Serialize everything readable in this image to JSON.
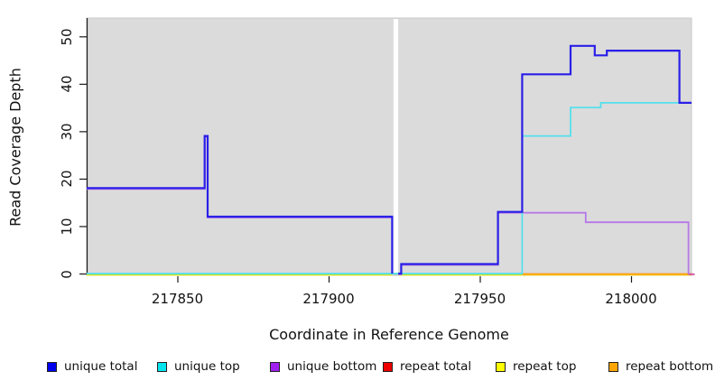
{
  "y_axis": {
    "label": "Read Coverage Depth",
    "ticks": [
      0,
      10,
      20,
      30,
      40,
      50
    ]
  },
  "x_axis": {
    "label": "Coordinate in Reference Genome",
    "ticks": [
      217850,
      217900,
      217950,
      218000
    ]
  },
  "legend": {
    "items": [
      {
        "label": "unique total",
        "color": "#0000ee"
      },
      {
        "label": "unique top",
        "color": "#00e5ee"
      },
      {
        "label": "unique bottom",
        "color": "#a020f0"
      },
      {
        "label": "repeat total",
        "color": "#ee0000"
      },
      {
        "label": "repeat top",
        "color": "#ffff00"
      },
      {
        "label": "repeat bottom",
        "color": "#ffa500"
      }
    ]
  },
  "chart_data": {
    "type": "line",
    "subtype": "step",
    "title": "",
    "xlabel": "Coordinate in Reference Genome",
    "ylabel": "Read Coverage Depth",
    "xlim": [
      217820,
      218021
    ],
    "ylim": [
      0,
      50
    ],
    "grid": false,
    "legend_position": "bottom",
    "plot_bg": "#dbdbdb",
    "gap_x": [
      217921,
      217923
    ],
    "series": [
      {
        "name": "unique total",
        "color": "#2a1fe8",
        "width": 2.2,
        "draw": 7,
        "dy": 0,
        "segments": [
          [
            [
              217820,
              18
            ],
            [
              217859,
              29
            ],
            [
              217860,
              12
            ],
            [
              217921,
              0
            ]
          ],
          [
            [
              217923,
              0
            ],
            [
              217924,
              2
            ],
            [
              217956,
              13
            ],
            [
              217964,
              42
            ],
            [
              217980,
              48
            ],
            [
              217988,
              46
            ],
            [
              217992,
              47
            ],
            [
              218016,
              36
            ],
            [
              218020,
              36
            ]
          ]
        ]
      },
      {
        "name": "unique top",
        "color": "#55e0ec",
        "width": 1.8,
        "draw": 6,
        "dy": 0,
        "segments": [
          [
            [
              217820,
              0
            ],
            [
              217964,
              0
            ],
            [
              217964,
              29
            ],
            [
              217980,
              35
            ],
            [
              217990,
              36
            ],
            [
              218020,
              36
            ]
          ]
        ]
      },
      {
        "name": "unique bottom",
        "color": "#b678e6",
        "width": 1.8,
        "draw": 5,
        "dy": 1,
        "segments": [
          [
            [
              217820,
              18
            ],
            [
              217859,
              29
            ],
            [
              217860,
              12
            ],
            [
              217921,
              0
            ]
          ],
          [
            [
              217923,
              0
            ],
            [
              217924,
              2
            ],
            [
              217956,
              13
            ],
            [
              217985,
              11
            ],
            [
              218019,
              0
            ]
          ]
        ]
      },
      {
        "name": "repeat total",
        "color": "#e60000",
        "width": 1.4,
        "draw": 1,
        "dy": 0.6,
        "segments": [
          [
            [
              217820,
              0
            ],
            [
              217921,
              0
            ]
          ],
          [
            [
              217923,
              0
            ],
            [
              218020,
              0
            ]
          ]
        ]
      },
      {
        "name": "repeat top",
        "color": "#f0f000",
        "width": 1.4,
        "draw": 2,
        "dy": 1.6,
        "segments": [
          [
            [
              217820,
              0
            ],
            [
              217921,
              0
            ]
          ],
          [
            [
              217923,
              0
            ],
            [
              218020,
              0
            ]
          ]
        ]
      },
      {
        "name": "repeat bottom",
        "color": "#ffa500",
        "width": 2,
        "draw": 3,
        "dy": 0.8,
        "clip_x": [
          217964,
          218021
        ],
        "segments": [
          [
            [
              217820,
              0
            ],
            [
              217921,
              0
            ]
          ],
          [
            [
              217923,
              0
            ],
            [
              218020,
              0
            ]
          ]
        ]
      }
    ],
    "zero_overlap_blends": [
      {
        "name": "cyan-over-yellow-zero",
        "color": "#7dc87d",
        "width": 1.6,
        "dy": 0.5,
        "x": [
          217820,
          217964
        ],
        "draw": 4
      },
      {
        "name": "purple-over-orange-zero",
        "color": "#d4569e",
        "width": 2,
        "dy": 0.8,
        "x": [
          218019,
          218021
        ],
        "draw": 4.5
      }
    ]
  }
}
